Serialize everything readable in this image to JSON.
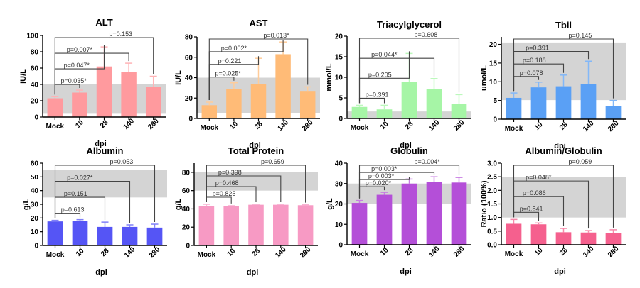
{
  "chart_data": [
    {
      "type": "bar",
      "title": "ALT",
      "xlabel": "dpi",
      "ylabel": "IU/L",
      "categories": [
        "Mock",
        "10",
        "28",
        "140",
        "280"
      ],
      "values": [
        23,
        30,
        62,
        55,
        37
      ],
      "errors": [
        2,
        3,
        24,
        11,
        13
      ],
      "ylim": [
        0,
        100
      ],
      "yticks": [
        0,
        20,
        40,
        60,
        80,
        100
      ],
      "reference_range": [
        4,
        40
      ],
      "color": "#ff9a9e",
      "comparisons": [
        {
          "from": "Mock",
          "to": "10",
          "label": "p=0.035*"
        },
        {
          "from": "Mock",
          "to": "28",
          "label": "p=0.047*"
        },
        {
          "from": "Mock",
          "to": "140",
          "label": "p=0.007*"
        },
        {
          "from": "Mock",
          "to": "280",
          "label": "p=0.153"
        }
      ]
    },
    {
      "type": "bar",
      "title": "AST",
      "xlabel": "dpi",
      "ylabel": "IU/L",
      "categories": [
        "Mock",
        "10",
        "28",
        "140",
        "280"
      ],
      "values": [
        13,
        29,
        34,
        63,
        27
      ],
      "errors": [
        3,
        6,
        25,
        12,
        4
      ],
      "ylim": [
        0,
        80
      ],
      "yticks": [
        0,
        20,
        40,
        60,
        80
      ],
      "reference_range": [
        5,
        40
      ],
      "color": "#ffbb77",
      "comparisons": [
        {
          "from": "Mock",
          "to": "10",
          "label": "p=0.025*"
        },
        {
          "from": "Mock",
          "to": "28",
          "label": "p=0.221"
        },
        {
          "from": "Mock",
          "to": "140",
          "label": "p=0.002*"
        },
        {
          "from": "Mock",
          "to": "280",
          "label": "p=0.013*"
        }
      ]
    },
    {
      "type": "bar",
      "title": "Triacylglycerol",
      "xlabel": "dpi",
      "ylabel": "mmol/L",
      "categories": [
        "Mock",
        "10",
        "28",
        "140",
        "280"
      ],
      "values": [
        2.8,
        2.2,
        8.9,
        7.2,
        3.6
      ],
      "errors": [
        0.4,
        1.0,
        6.9,
        2.5,
        2.2
      ],
      "ylim": [
        0,
        20
      ],
      "yticks": [
        0,
        5,
        10,
        15,
        20
      ],
      "reference_range": [
        0,
        1.7
      ],
      "color": "#a6f5a6",
      "comparisons": [
        {
          "from": "Mock",
          "to": "10",
          "label": "p=0.391"
        },
        {
          "from": "Mock",
          "to": "28",
          "label": "p=0.205"
        },
        {
          "from": "Mock",
          "to": "140",
          "label": "p=0.044*"
        },
        {
          "from": "Mock",
          "to": "280",
          "label": "p=0.608"
        }
      ]
    },
    {
      "type": "bar",
      "title": "Tbil",
      "xlabel": "dpi",
      "ylabel": "umol/L",
      "categories": [
        "Mock",
        "10",
        "28",
        "140",
        "280"
      ],
      "values": [
        5.7,
        8.5,
        8.8,
        9.3,
        3.6
      ],
      "errors": [
        1.3,
        1.4,
        3.0,
        6.2,
        1.4
      ],
      "ylim": [
        0,
        22
      ],
      "yticks": [
        0,
        5,
        10,
        15,
        20
      ],
      "reference_range": [
        5.1,
        20.5
      ],
      "color": "#5aa0f5",
      "comparisons": [
        {
          "from": "Mock",
          "to": "10",
          "label": "p=0.078"
        },
        {
          "from": "Mock",
          "to": "28",
          "label": "p=0.188"
        },
        {
          "from": "Mock",
          "to": "140",
          "label": "p=0.391"
        },
        {
          "from": "Mock",
          "to": "280",
          "label": "p=0.145"
        }
      ]
    },
    {
      "type": "bar",
      "title": "Albumin",
      "xlabel": "dpi",
      "ylabel": "g/L",
      "categories": [
        "Mock",
        "10",
        "28",
        "140",
        "280"
      ],
      "values": [
        17.5,
        18,
        13.5,
        13.5,
        13
      ],
      "errors": [
        0.8,
        0.8,
        3.5,
        1.5,
        2.5
      ],
      "ylim": [
        0,
        60
      ],
      "yticks": [
        0,
        10,
        20,
        30,
        40,
        50,
        60
      ],
      "reference_range": [
        35,
        55
      ],
      "color": "#5555f5",
      "comparisons": [
        {
          "from": "Mock",
          "to": "10",
          "label": "p=0.613"
        },
        {
          "from": "Mock",
          "to": "28",
          "label": "p=0.151"
        },
        {
          "from": "Mock",
          "to": "140",
          "label": "p=0.027*"
        },
        {
          "from": "Mock",
          "to": "280",
          "label": "p=0.053"
        }
      ]
    },
    {
      "type": "bar",
      "title": "Total Protein",
      "xlabel": "dpi",
      "ylabel": "g/L",
      "categories": [
        "Mock",
        "10",
        "28",
        "140",
        "280"
      ],
      "values": [
        43,
        43,
        44.5,
        44.5,
        44
      ],
      "errors": [
        2,
        0.5,
        0.5,
        0.5,
        0.5
      ],
      "ylim": [
        0,
        90
      ],
      "yticks": [
        0,
        20,
        40,
        60,
        80
      ],
      "reference_range": [
        60,
        80
      ],
      "color": "#f79ac4",
      "comparisons": [
        {
          "from": "Mock",
          "to": "10",
          "label": "p=0.825"
        },
        {
          "from": "Mock",
          "to": "28",
          "label": "p=0.468"
        },
        {
          "from": "Mock",
          "to": "140",
          "label": "p=0.398"
        },
        {
          "from": "Mock",
          "to": "280",
          "label": "p=0.659"
        }
      ]
    },
    {
      "type": "bar",
      "title": "Globulin",
      "xlabel": "dpi",
      "ylabel": "g/L",
      "categories": [
        "Mock",
        "10",
        "28",
        "140",
        "280"
      ],
      "values": [
        20.5,
        24.5,
        30,
        30.8,
        30.5
      ],
      "errors": [
        1.2,
        1.2,
        2.2,
        2.5,
        2.5
      ],
      "ylim": [
        0,
        40
      ],
      "yticks": [
        0,
        10,
        20,
        30,
        40
      ],
      "reference_range": [
        20,
        30
      ],
      "color": "#b44fd8",
      "comparisons": [
        {
          "from": "Mock",
          "to": "10",
          "label": "p=0.020*"
        },
        {
          "from": "Mock",
          "to": "28",
          "label": "p=0.003*"
        },
        {
          "from": "Mock",
          "to": "140",
          "label": "p=0.003*"
        },
        {
          "from": "Mock",
          "to": "280",
          "label": "p=0.004*"
        }
      ]
    },
    {
      "type": "bar",
      "title": "Albumin/Globulin",
      "xlabel": "dpi",
      "ylabel": "Ratio (100%)",
      "categories": [
        "Mock",
        "10",
        "28",
        "140",
        "280"
      ],
      "values": [
        0.77,
        0.75,
        0.46,
        0.45,
        0.44
      ],
      "errors": [
        0.16,
        0.05,
        0.14,
        0.07,
        0.11
      ],
      "ylim": [
        0,
        3.0
      ],
      "yticks": [
        0.0,
        0.5,
        1.0,
        1.5,
        2.0,
        2.5,
        3.0
      ],
      "ytick_labels": [
        "0.0",
        "0.5",
        "1.0",
        "1.5",
        "2.0",
        "2.5",
        "3.0"
      ],
      "reference_range": [
        1.0,
        2.5
      ],
      "color": "#f5608e",
      "comparisons": [
        {
          "from": "Mock",
          "to": "10",
          "label": "p=0.841"
        },
        {
          "from": "Mock",
          "to": "28",
          "label": "p=0.086"
        },
        {
          "from": "Mock",
          "to": "140",
          "label": "p=0.048*"
        },
        {
          "from": "Mock",
          "to": "280",
          "label": "p=0.059"
        }
      ]
    }
  ]
}
